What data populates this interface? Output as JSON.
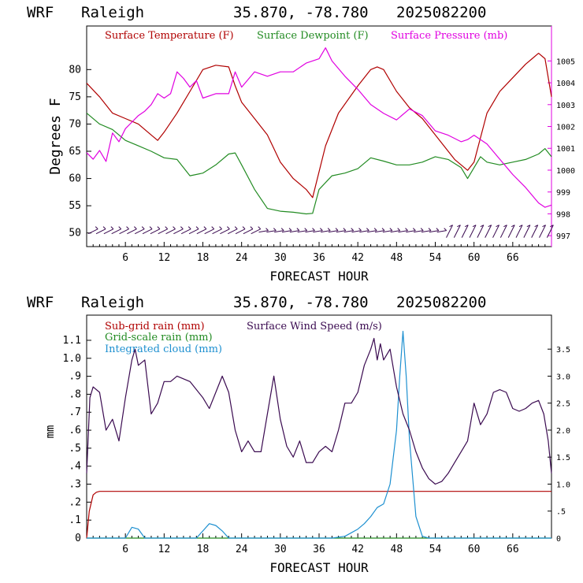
{
  "panel1": {
    "header": {
      "model": "WRF",
      "location": "Raleigh",
      "coords": "35.870, -78.780",
      "run": "2025082200"
    },
    "ylabel": "Degrees F",
    "xlabel": "FORECAST HOUR",
    "colors": {
      "temp": "#b00000",
      "dew": "#228b22",
      "pres": "#e000e0",
      "wind": "#3a0a50"
    }
  },
  "panel2": {
    "header": {
      "model": "WRF",
      "location": "Raleigh",
      "coords": "35.870, -78.780",
      "run": "2025082200"
    },
    "ylabel": "mm",
    "xlabel": "FORECAST HOUR",
    "colors": {
      "subgrid": "#b00000",
      "grid": "#228b22",
      "cloud": "#1e90d0",
      "wind": "#3a0a50"
    }
  },
  "chart_data": [
    {
      "type": "line",
      "title": "WRF Raleigh 35.870, -78.780 2025082200",
      "xlabel": "FORECAST HOUR",
      "ylabel": "Degrees F",
      "xlim": [
        0,
        72
      ],
      "ylim": [
        47.5,
        88
      ],
      "y2lim": [
        996.5,
        1006.6
      ],
      "xticks": [
        "6",
        "12",
        "18",
        "24",
        "30",
        "36",
        "42",
        "48",
        "54",
        "60",
        "66"
      ],
      "yticks": [
        "50",
        "55",
        "60",
        "65",
        "70",
        "75",
        "80"
      ],
      "y2ticks": [
        "997",
        "998",
        "999",
        "1000",
        "1001",
        "1002",
        "1003",
        "1004",
        "1005"
      ],
      "series": [
        {
          "name": "Surface Temperature (F)",
          "axis": "left",
          "x": [
            0,
            2,
            4,
            6,
            8,
            10,
            11,
            12,
            14,
            16,
            18,
            20,
            22,
            23,
            24,
            26,
            28,
            30,
            32,
            34,
            35,
            37,
            39,
            42,
            44,
            45,
            46,
            48,
            50,
            52,
            54,
            56,
            57,
            58,
            59,
            60,
            62,
            64,
            66,
            68,
            69,
            70,
            71,
            72
          ],
          "y": [
            77.5,
            75,
            72,
            71,
            70,
            68,
            67,
            68.5,
            72,
            76,
            80,
            80.8,
            80.5,
            77,
            74,
            71,
            68,
            63,
            60,
            58,
            56.5,
            66,
            72,
            77,
            80,
            80.5,
            80,
            76,
            73,
            71,
            68,
            65,
            63.5,
            62.5,
            61.5,
            63,
            72,
            76,
            78.5,
            81,
            82,
            83,
            82,
            75
          ]
        },
        {
          "name": "Surface Dewpoint (F)",
          "axis": "left",
          "x": [
            0,
            2,
            4,
            6,
            8,
            10,
            12,
            14,
            16,
            18,
            20,
            22,
            23,
            24,
            26,
            28,
            30,
            32,
            34,
            35,
            36,
            38,
            40,
            42,
            44,
            46,
            48,
            50,
            52,
            54,
            56,
            58,
            59,
            60,
            61,
            62,
            64,
            66,
            68,
            70,
            71,
            72
          ],
          "y": [
            72,
            70,
            69,
            67,
            66,
            65,
            63.8,
            63.5,
            60.5,
            61,
            62.5,
            64.5,
            64.7,
            62.5,
            58,
            54.5,
            54,
            53.8,
            53.5,
            53.6,
            58,
            60.5,
            61,
            61.8,
            63.8,
            63.2,
            62.5,
            62.5,
            63,
            64,
            63.5,
            62,
            60,
            62,
            64,
            63,
            62.5,
            63,
            63.5,
            64.5,
            65.5,
            64
          ]
        },
        {
          "name": "Surface Pressure (mb)",
          "axis": "right",
          "x": [
            0,
            1,
            2,
            3,
            4,
            5,
            6,
            7,
            8,
            9,
            10,
            11,
            12,
            13,
            14,
            15,
            16,
            17,
            18,
            20,
            22,
            23,
            24,
            26,
            28,
            30,
            32,
            34,
            36,
            37,
            38,
            40,
            42,
            44,
            46,
            48,
            50,
            52,
            54,
            56,
            58,
            59,
            60,
            62,
            64,
            66,
            68,
            70,
            71,
            72
          ],
          "y": [
            1000.8,
            1000.5,
            1000.9,
            1000.4,
            1001.7,
            1001.3,
            1001.9,
            1002.2,
            1002.5,
            1002.7,
            1003,
            1003.5,
            1003.3,
            1003.5,
            1004.5,
            1004.2,
            1003.8,
            1004.1,
            1003.3,
            1003.5,
            1003.5,
            1004.5,
            1003.8,
            1004.5,
            1004.3,
            1004.5,
            1004.5,
            1004.9,
            1005.1,
            1005.6,
            1005,
            1004.3,
            1003.7,
            1003,
            1002.6,
            1002.3,
            1002.8,
            1002.5,
            1001.8,
            1001.6,
            1001.3,
            1001.4,
            1001.6,
            1001.2,
            1000.5,
            999.8,
            999.2,
            998.5,
            998.3,
            998.4
          ]
        },
        {
          "name": "Wind barbs",
          "axis": "left",
          "x": [
            0,
            72
          ],
          "y": [
            50.3,
            50.3
          ]
        }
      ]
    },
    {
      "type": "line",
      "title": "WRF Raleigh 35.870, -78.780 2025082200",
      "xlabel": "FORECAST HOUR",
      "ylabel": "mm",
      "xlim": [
        0,
        72
      ],
      "ylim": [
        0,
        1.24
      ],
      "y2lim": [
        0,
        4.13
      ],
      "xticks": [
        "6",
        "12",
        "18",
        "24",
        "30",
        "36",
        "42",
        "48",
        "54",
        "60",
        "66"
      ],
      "yticks": [
        "0",
        ".1",
        ".2",
        ".3",
        ".4",
        ".5",
        ".6",
        ".7",
        ".8",
        ".9",
        "1.0",
        "1.1"
      ],
      "y2ticks": [
        "0",
        ".5",
        "1.0",
        "1.5",
        "2.0",
        "2.5",
        "3.0",
        "3.5"
      ],
      "series": [
        {
          "name": "Sub-grid rain (mm)",
          "axis": "left",
          "x": [
            0,
            0.4,
            1,
            1.5,
            2,
            72
          ],
          "y": [
            0,
            0.15,
            0.24,
            0.255,
            0.26,
            0.26
          ]
        },
        {
          "name": "Grid-scale rain (mm)",
          "axis": "left",
          "x": [
            0,
            72
          ],
          "y": [
            0,
            0
          ]
        },
        {
          "name": "Integrated cloud (mm)",
          "axis": "left",
          "x": [
            0,
            6,
            7,
            8,
            9,
            17,
            18,
            19,
            20,
            21,
            22,
            38,
            40,
            41,
            42,
            43,
            44,
            45,
            46,
            47,
            48,
            48.5,
            49,
            49.5,
            50,
            51,
            52,
            53,
            72
          ],
          "y": [
            0,
            0,
            0.06,
            0.05,
            0,
            0,
            0.04,
            0.08,
            0.07,
            0.04,
            0,
            0,
            0.01,
            0.03,
            0.05,
            0.08,
            0.12,
            0.17,
            0.19,
            0.3,
            0.6,
            0.9,
            1.15,
            0.9,
            0.55,
            0.12,
            0.01,
            0,
            0
          ]
        },
        {
          "name": "Surface Wind Speed (m/s)",
          "axis": "right",
          "x": [
            0,
            0.5,
            1,
            2,
            3,
            4,
            5,
            6,
            7,
            7.5,
            8,
            9,
            10,
            11,
            12,
            13,
            14,
            16,
            18,
            19,
            20,
            21,
            22,
            23,
            24,
            25,
            26,
            27,
            28,
            29,
            30,
            31,
            32,
            33,
            34,
            35,
            36,
            37,
            38,
            39,
            40,
            41,
            42,
            43,
            44,
            44.5,
            45,
            45.5,
            46,
            47,
            48,
            49,
            50,
            51,
            52,
            53,
            54,
            55,
            56,
            57,
            58,
            59,
            60,
            61,
            62,
            63,
            64,
            65,
            66,
            67,
            68,
            69,
            70,
            70.8,
            71.5,
            72
          ],
          "y": [
            1.2,
            2.6,
            2.8,
            2.7,
            2.0,
            2.2,
            1.8,
            2.6,
            3.3,
            3.5,
            3.2,
            3.3,
            2.3,
            2.5,
            2.9,
            2.9,
            3.0,
            2.9,
            2.6,
            2.4,
            2.7,
            3.0,
            2.7,
            2.0,
            1.6,
            1.8,
            1.6,
            1.6,
            2.3,
            3.0,
            2.2,
            1.7,
            1.5,
            1.8,
            1.4,
            1.4,
            1.6,
            1.7,
            1.6,
            2.0,
            2.5,
            2.5,
            2.7,
            3.2,
            3.5,
            3.7,
            3.3,
            3.6,
            3.3,
            3.5,
            2.8,
            2.3,
            2.0,
            1.6,
            1.3,
            1.1,
            1.0,
            1.05,
            1.2,
            1.4,
            1.6,
            1.8,
            2.5,
            2.1,
            2.3,
            2.7,
            2.75,
            2.7,
            2.4,
            2.35,
            2.4,
            2.5,
            2.55,
            2.3,
            1.8,
            1.2
          ]
        }
      ]
    }
  ]
}
